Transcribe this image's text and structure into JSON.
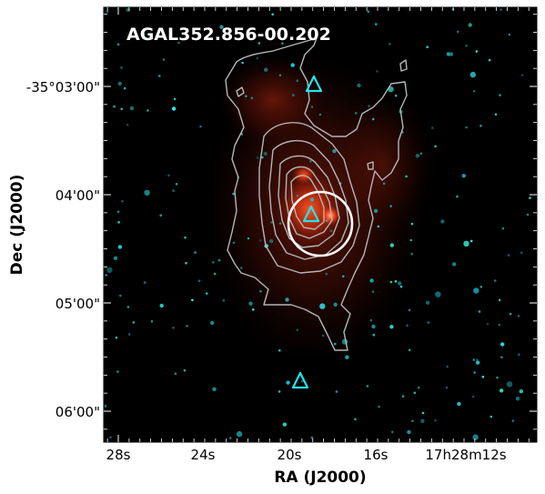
{
  "title": "AGAL352.856-00.202",
  "x_axis": {
    "label": "RA (J2000)",
    "ticks": [
      "28s",
      "24s",
      "20s",
      "16s",
      "17h28m12s"
    ]
  },
  "y_axis": {
    "label": "Dec (J2000)",
    "ticks": [
      "-35°03'00\"",
      "04'00\"",
      "05'00\"",
      "06'00\""
    ]
  },
  "markers": [
    "triangle",
    "triangle",
    "triangle"
  ],
  "colors": {
    "background": "#000000",
    "contour": "#b5b5b5",
    "marker": "#22e5ee",
    "beam_circle": "#ffffff",
    "emission": "#ff3a1a"
  }
}
